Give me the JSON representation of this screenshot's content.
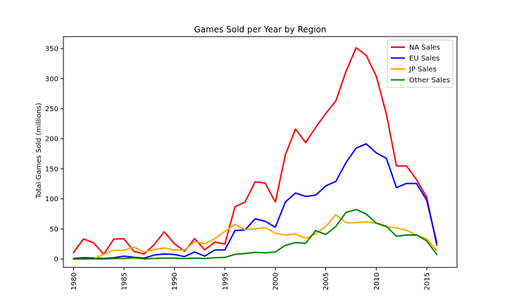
{
  "chart_data": {
    "type": "line",
    "title": "Games Sold per Year by Region",
    "xlabel": "",
    "ylabel": "Total Games Sold (millions)",
    "xlim": [
      1979,
      2018
    ],
    "ylim": [
      -14,
      370
    ],
    "x_ticks": [
      "1980",
      "1985",
      "1990",
      "1995",
      "2000",
      "2005",
      "2010",
      "2015"
    ],
    "y_ticks": [
      "0",
      "50",
      "100",
      "150",
      "200",
      "250",
      "300",
      "350"
    ],
    "grid": false,
    "legend_position": "top-right",
    "x": [
      1980,
      1981,
      1982,
      1983,
      1984,
      1985,
      1986,
      1987,
      1988,
      1989,
      1990,
      1991,
      1992,
      1993,
      1994,
      1995,
      1996,
      1997,
      1998,
      1999,
      2000,
      2001,
      2002,
      2003,
      2004,
      2005,
      2006,
      2007,
      2008,
      2009,
      2010,
      2011,
      2012,
      2013,
      2014,
      2015,
      2016
    ],
    "series": [
      {
        "name": "NA Sales",
        "color": "#ff0000",
        "values": [
          10.6,
          33.4,
          26.9,
          7.8,
          33.3,
          33.7,
          12.5,
          8.5,
          23.9,
          45.2,
          25.5,
          12.8,
          33.9,
          15.1,
          28.2,
          24.8,
          86.8,
          94.8,
          128.4,
          126.1,
          94.5,
          173.6,
          216.2,
          193.6,
          219.0,
          242.1,
          263.1,
          312.1,
          351.4,
          338.9,
          304.2,
          241.2,
          154.9,
          154.8,
          131.9,
          102.8,
          22.7
        ]
      },
      {
        "name": "EU Sales",
        "color": "#0000ff",
        "values": [
          0.7,
          2.0,
          1.7,
          0.8,
          2.1,
          4.7,
          2.8,
          1.4,
          6.6,
          8.4,
          7.6,
          3.9,
          11.7,
          4.7,
          14.9,
          14.9,
          47.3,
          48.3,
          66.9,
          62.7,
          52.8,
          94.9,
          109.7,
          104.0,
          106.4,
          121.6,
          129.2,
          160.2,
          184.4,
          191.6,
          176.7,
          167.4,
          118.8,
          125.8,
          125.6,
          97.7,
          26.8
        ]
      },
      {
        "name": "JP Sales",
        "color": "#ffa500",
        "values": [
          0.0,
          0.0,
          0.0,
          8.1,
          14.3,
          14.6,
          19.8,
          11.6,
          15.8,
          18.4,
          14.9,
          14.8,
          28.9,
          25.3,
          33.9,
          45.8,
          57.4,
          48.9,
          50.0,
          52.3,
          42.8,
          39.9,
          41.8,
          34.2,
          41.7,
          54.3,
          73.7,
          60.3,
          60.3,
          61.9,
          59.5,
          53.0,
          51.8,
          47.6,
          39.5,
          33.7,
          13.7
        ]
      },
      {
        "name": "Other Sales",
        "color": "#008000",
        "values": [
          0.1,
          0.3,
          0.3,
          0.1,
          0.7,
          0.9,
          1.9,
          0.2,
          1.0,
          1.5,
          1.4,
          0.7,
          1.6,
          0.9,
          2.2,
          2.6,
          7.7,
          9.1,
          11.0,
          10.1,
          11.6,
          22.8,
          27.3,
          26.0,
          47.3,
          40.6,
          54.4,
          77.6,
          82.4,
          74.8,
          59.8,
          54.4,
          37.8,
          39.8,
          40.0,
          30.1,
          7.4
        ]
      }
    ]
  }
}
